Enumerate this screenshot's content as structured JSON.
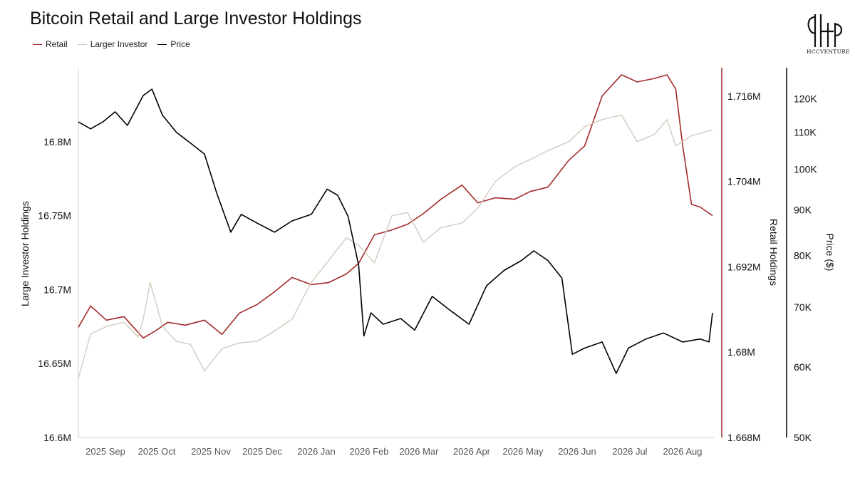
{
  "title": "Bitcoin Retail and Large Investor Holdings",
  "logo_text": "HCCVENTURE",
  "legend": [
    {
      "label": "Retail",
      "color": "#a42a2a"
    },
    {
      "label": "Larger Investor",
      "color": "#d2cbbf"
    },
    {
      "label": "Price",
      "color": "#000000"
    }
  ],
  "chart_data": {
    "type": "line",
    "title": "Bitcoin Retail and Large Investor Holdings",
    "x_tick_labels": [
      "2025 Sep",
      "2025 Oct",
      "2025 Nov",
      "2025 Dec",
      "2026 Jan",
      "2026 Feb",
      "2026 Mar",
      "2026 Apr",
      "2026 May",
      "2026 Jun",
      "2026 Jul",
      "2026 Aug"
    ],
    "x_range": [
      "2025-08-25",
      "2026-08-22"
    ],
    "left_axis": {
      "label": "Large Investor Holdings",
      "range": [
        16600000,
        16850000
      ],
      "ticks": [
        "16.6M",
        "16.65M",
        "16.7M",
        "16.75M",
        "16.8M"
      ],
      "tick_values": [
        16600000,
        16650000,
        16700000,
        16750000,
        16800000
      ]
    },
    "right_axis_1": {
      "label": "Retail Holdings",
      "range": [
        1668000,
        1720000
      ],
      "ticks": [
        "1.668M",
        "1.68M",
        "1.692M",
        "1.704M",
        "1.716M"
      ],
      "tick_values": [
        1668000,
        1680000,
        1692000,
        1704000,
        1716000
      ]
    },
    "right_axis_2": {
      "label": "Price ($)",
      "scale": "log",
      "range": [
        50000,
        130000
      ],
      "ticks": [
        "50K",
        "60K",
        "70K",
        "80K",
        "90K",
        "100K",
        "110K",
        "120K"
      ],
      "tick_values": [
        50000,
        60000,
        70000,
        80000,
        90000,
        100000,
        110000,
        120000
      ]
    },
    "grid": false,
    "legend_position": "top-left",
    "series": [
      {
        "name": "Retail",
        "axis": "right_axis_1",
        "color": "#a42a2a",
        "x": [
          "2025-08-25",
          "2025-09-01",
          "2025-09-10",
          "2025-09-20",
          "2025-10-01",
          "2025-10-08",
          "2025-10-15",
          "2025-10-25",
          "2025-11-05",
          "2025-11-15",
          "2025-11-25",
          "2025-12-05",
          "2025-12-15",
          "2025-12-25",
          "2026-01-05",
          "2026-01-15",
          "2026-01-25",
          "2026-02-01",
          "2026-02-10",
          "2026-02-20",
          "2026-03-01",
          "2026-03-10",
          "2026-03-20",
          "2026-04-01",
          "2026-04-10",
          "2026-04-20",
          "2026-05-01",
          "2026-05-10",
          "2026-05-20",
          "2026-06-01",
          "2026-06-10",
          "2026-06-20",
          "2026-07-01",
          "2026-07-10",
          "2026-07-20",
          "2026-07-27",
          "2026-08-01",
          "2026-08-05",
          "2026-08-10",
          "2026-08-15",
          "2026-08-22"
        ],
        "values": [
          1683500,
          1686500,
          1684500,
          1685000,
          1682000,
          1683000,
          1684200,
          1683800,
          1684500,
          1682500,
          1685500,
          1686700,
          1688500,
          1690500,
          1689500,
          1689800,
          1691000,
          1692500,
          1696500,
          1697200,
          1698000,
          1699500,
          1701500,
          1703500,
          1701000,
          1701700,
          1701500,
          1702600,
          1703200,
          1707000,
          1709000,
          1716000,
          1719000,
          1718000,
          1718500,
          1719000,
          1717000,
          1709000,
          1700800,
          1700400,
          1699200
        ]
      },
      {
        "name": "Larger Investor",
        "axis": "left_axis",
        "color": "#d2cbbf",
        "x": [
          "2025-08-25",
          "2025-09-01",
          "2025-09-10",
          "2025-09-20",
          "2025-09-28",
          "2025-10-01",
          "2025-10-05",
          "2025-10-12",
          "2025-10-20",
          "2025-10-28",
          "2025-11-05",
          "2025-11-15",
          "2025-11-25",
          "2025-12-05",
          "2025-12-15",
          "2025-12-25",
          "2026-01-05",
          "2026-01-15",
          "2026-01-25",
          "2026-02-01",
          "2026-02-10",
          "2026-02-20",
          "2026-03-01",
          "2026-03-10",
          "2026-03-20",
          "2026-04-01",
          "2026-04-10",
          "2026-04-20",
          "2026-05-01",
          "2026-05-10",
          "2026-05-20",
          "2026-06-01",
          "2026-06-10",
          "2026-06-20",
          "2026-07-01",
          "2026-07-10",
          "2026-07-20",
          "2026-07-27",
          "2026-08-01",
          "2026-08-10",
          "2026-08-22"
        ],
        "values": [
          16640000,
          16670000,
          16675000,
          16678000,
          16668000,
          16680000,
          16705000,
          16675000,
          16665000,
          16663000,
          16645000,
          16660000,
          16664000,
          16665000,
          16672000,
          16680000,
          16705000,
          16720000,
          16735000,
          16730000,
          16718000,
          16750000,
          16752000,
          16732000,
          16742000,
          16745000,
          16755000,
          16773000,
          16783000,
          16788000,
          16794000,
          16800000,
          16810000,
          16815000,
          16818000,
          16800000,
          16805000,
          16815000,
          16797000,
          16804000,
          16808000
        ]
      },
      {
        "name": "Price",
        "axis": "right_axis_2",
        "color": "#000000",
        "x": [
          "2025-08-25",
          "2025-09-01",
          "2025-09-08",
          "2025-09-15",
          "2025-09-22",
          "2025-10-01",
          "2025-10-06",
          "2025-10-12",
          "2025-10-20",
          "2025-10-28",
          "2025-11-05",
          "2025-11-12",
          "2025-11-20",
          "2025-11-26",
          "2025-12-05",
          "2025-12-15",
          "2025-12-25",
          "2026-01-05",
          "2026-01-14",
          "2026-01-20",
          "2026-01-26",
          "2026-02-01",
          "2026-02-04",
          "2026-02-08",
          "2026-02-15",
          "2026-02-25",
          "2026-03-05",
          "2026-03-15",
          "2026-03-25",
          "2026-04-05",
          "2026-04-15",
          "2026-04-25",
          "2026-05-05",
          "2026-05-12",
          "2026-05-20",
          "2026-05-28",
          "2026-06-03",
          "2026-06-10",
          "2026-06-20",
          "2026-06-28",
          "2026-07-05",
          "2026-07-15",
          "2026-07-25",
          "2026-08-05",
          "2026-08-15",
          "2026-08-20",
          "2026-08-22"
        ],
        "values": [
          113000,
          111000,
          113000,
          116000,
          112000,
          121000,
          123000,
          115000,
          110000,
          107000,
          104000,
          94000,
          85000,
          89000,
          87000,
          85000,
          87500,
          89000,
          95000,
          93500,
          88500,
          78000,
          65000,
          69000,
          67000,
          68000,
          66000,
          72000,
          69500,
          67000,
          74000,
          77000,
          79000,
          81000,
          79000,
          75500,
          62000,
          63000,
          64000,
          59000,
          63000,
          64500,
          65500,
          64000,
          64500,
          64000,
          69000
        ]
      }
    ]
  }
}
